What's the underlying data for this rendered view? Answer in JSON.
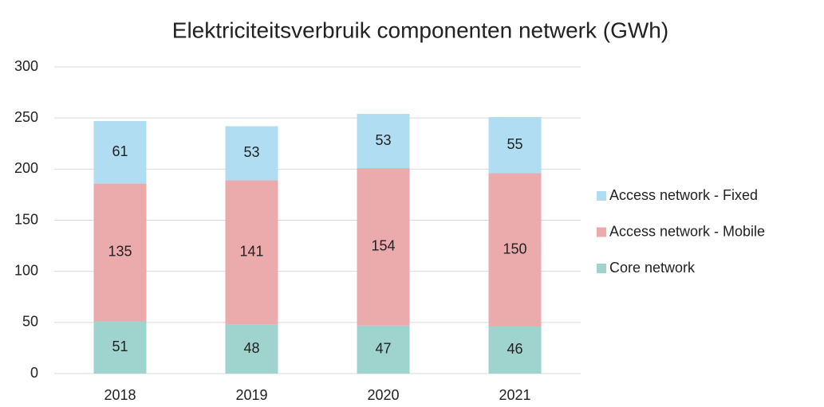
{
  "chart_data": {
    "type": "stacked_bar",
    "title": "Elektriciteitsverbruik componenten netwerk (GWh)",
    "categories": [
      "2018",
      "2019",
      "2020",
      "2021"
    ],
    "series": [
      {
        "name": "Core network",
        "color": "#9fd3cd",
        "values": [
          51,
          48,
          47,
          46
        ]
      },
      {
        "name": "Access network - Mobile",
        "color": "#ebaaac",
        "values": [
          135,
          141,
          154,
          150
        ]
      },
      {
        "name": "Access network - Fixed",
        "color": "#b0ddf2",
        "values": [
          61,
          53,
          53,
          55
        ]
      }
    ],
    "ylim": [
      0,
      300
    ],
    "yticks": [
      0,
      50,
      100,
      150,
      200,
      250,
      300
    ],
    "grid": true,
    "legend": "right"
  }
}
